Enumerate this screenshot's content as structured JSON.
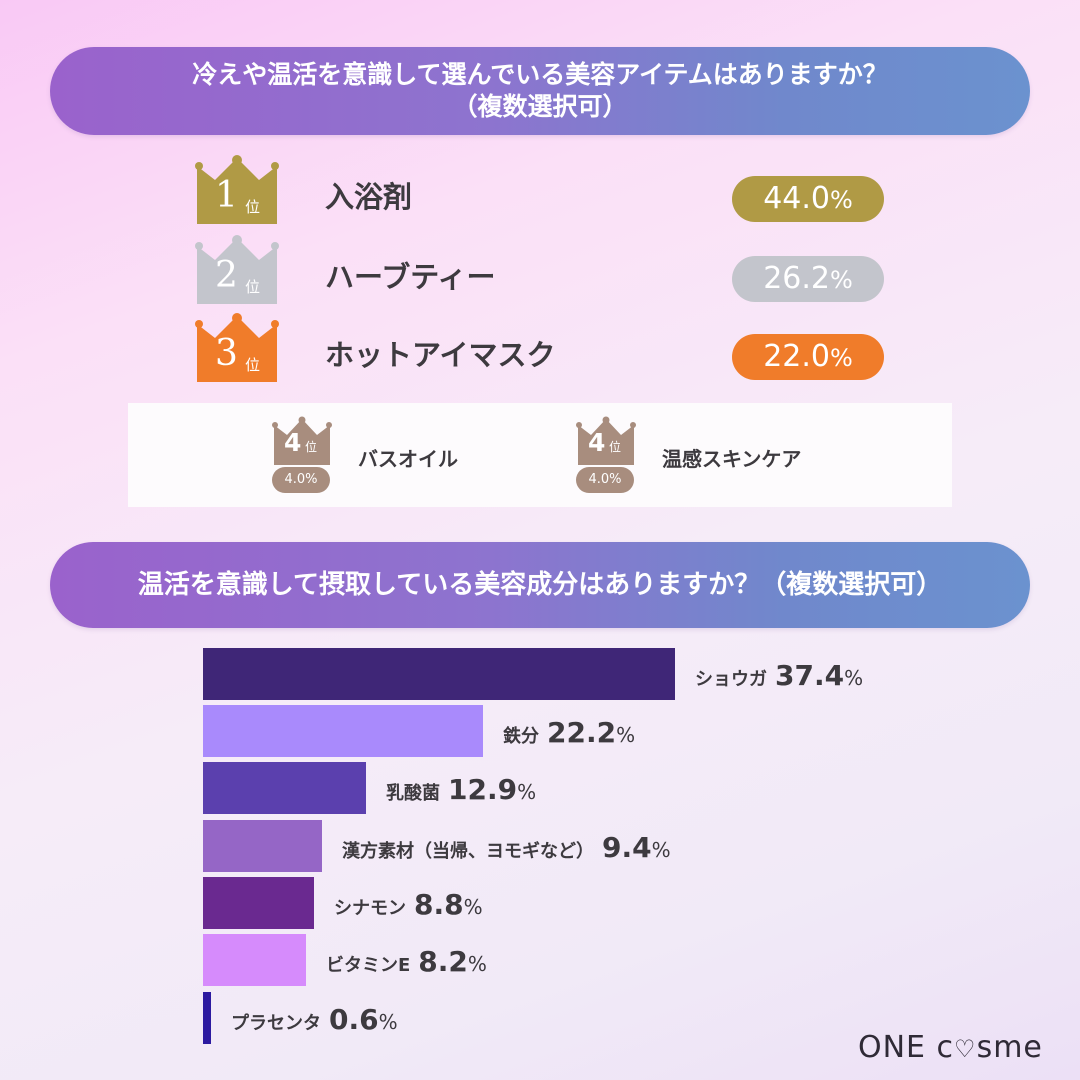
{
  "section1": {
    "title_line1": "冷えや温活を意識して選んでいる美容アイテムはありますか？",
    "title_line2": "（複数選択可）",
    "rank_suffix": "位",
    "ranks": [
      {
        "rank": "1",
        "label": "入浴剤",
        "value": "44.0",
        "unit": "%",
        "color": "#b09a45"
      },
      {
        "rank": "2",
        "label": "ハーブティー",
        "value": "26.2",
        "unit": "%",
        "color": "#c3c5cc"
      },
      {
        "rank": "3",
        "label": "ホットアイマスク",
        "value": "22.0",
        "unit": "%",
        "color": "#f07c2a"
      }
    ],
    "fourth": [
      {
        "rank": "4",
        "label": "バスオイル",
        "value": "4.0%",
        "color": "#a88d7e"
      },
      {
        "rank": "4",
        "label": "温感スキンケア",
        "value": "4.0%",
        "color": "#a88d7e"
      }
    ]
  },
  "section2": {
    "title": "温活を意識して摂取している美容成分はありますか？（複数選択可）"
  },
  "chart_data": [
    {
      "type": "table",
      "title": "冷えや温活を意識して選んでいる美容アイテムはありますか？（複数選択可）",
      "categories": [
        "入浴剤",
        "ハーブティー",
        "ホットアイマスク",
        "バスオイル",
        "温感スキンケア"
      ],
      "ranks": [
        1,
        2,
        3,
        4,
        4
      ],
      "values": [
        44.0,
        26.2,
        22.0,
        4.0,
        4.0
      ],
      "unit": "%"
    },
    {
      "type": "bar",
      "orientation": "horizontal",
      "title": "温活を意識して摂取している美容成分はありますか？（複数選択可）",
      "categories": [
        "ショウガ",
        "鉄分",
        "乳酸菌",
        "漢方素材（当帰、ヨモギなど）",
        "シナモン",
        "ビタミンE",
        "プラセンタ"
      ],
      "values": [
        37.4,
        22.2,
        12.9,
        9.4,
        8.8,
        8.2,
        0.6
      ],
      "colors": [
        "#3f2677",
        "#a98afc",
        "#5b40ae",
        "#9566c6",
        "#6a2990",
        "#d68bfc",
        "#2c1aa0"
      ],
      "unit": "%",
      "xlabel": "",
      "ylabel": "",
      "grid": false,
      "legend": "none"
    }
  ],
  "footer": {
    "logo_part1": "ONE c",
    "logo_heart": "♡",
    "logo_part2": "sme"
  }
}
